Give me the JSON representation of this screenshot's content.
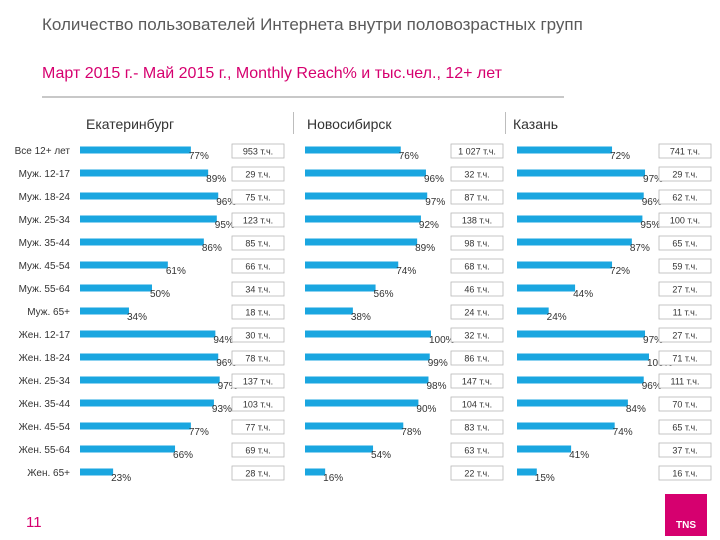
{
  "header": {
    "title": "Количество пользователей Интернета внутри половозрастных групп",
    "subtitle": "Март 2015 г.- Май 2015 г., Monthly Reach% и тыс.чел., 12+ лет"
  },
  "footer": {
    "page_number": "11",
    "logo_text": "TNS"
  },
  "colors": {
    "bar": "#1aa6e0",
    "accent": "#d6006f",
    "text": "#333333",
    "badge_border": "#b8b8b8"
  },
  "chart_data": {
    "type": "bar",
    "orientation": "horizontal",
    "title": "",
    "xlim": [
      0,
      100
    ],
    "value_unit": "%",
    "categories": [
      "Все 12+ лет",
      "Муж. 12-17",
      "Муж. 18-24",
      "Муж. 25-34",
      "Муж. 35-44",
      "Муж. 45-54",
      "Муж. 55-64",
      "Муж. 65+",
      "Жен. 12-17",
      "Жен. 18-24",
      "Жен. 25-34",
      "Жен. 35-44",
      "Жен. 45-54",
      "Жен. 55-64",
      "Жен. 65+"
    ],
    "series": [
      {
        "name": "Екатеринбург",
        "values": [
          77,
          89,
          96,
          95,
          86,
          61,
          50,
          34,
          94,
          96,
          97,
          93,
          77,
          66,
          23
        ],
        "labels": [
          "77%",
          "89%",
          "96%",
          "95%",
          "86%",
          "61%",
          "50%",
          "34%",
          "94%",
          "96%",
          "97%",
          "93%",
          "77%",
          "66%",
          "23%"
        ],
        "counts": [
          "953 т.ч.",
          "29 т.ч.",
          "75 т.ч.",
          "123 т.ч.",
          "85 т.ч.",
          "66 т.ч.",
          "34 т.ч.",
          "18 т.ч.",
          "30 т.ч.",
          "78 т.ч.",
          "137 т.ч.",
          "103 т.ч.",
          "77 т.ч.",
          "69 т.ч.",
          "28 т.ч."
        ]
      },
      {
        "name": "Новосибирск",
        "values": [
          76,
          96,
          97,
          92,
          89,
          74,
          56,
          38,
          100,
          99,
          98,
          90,
          78,
          54,
          16
        ],
        "labels": [
          "76%",
          "96%",
          "97%",
          "92%",
          "89%",
          "74%",
          "56%",
          "38%",
          "100%",
          "99%",
          "98%",
          "90%",
          "78%",
          "54%",
          "16%"
        ],
        "counts": [
          "1 027 т.ч.",
          "32 т.ч.",
          "87 т.ч.",
          "138 т.ч.",
          "98 т.ч.",
          "68 т.ч.",
          "46 т.ч.",
          "24 т.ч.",
          "32 т.ч.",
          "86 т.ч.",
          "147 т.ч.",
          "104 т.ч.",
          "83 т.ч.",
          "63 т.ч.",
          "22 т.ч."
        ]
      },
      {
        "name": "Казань",
        "values": [
          72,
          97,
          96,
          95,
          87,
          72,
          44,
          24,
          97,
          100,
          96,
          84,
          74,
          41,
          15
        ],
        "labels": [
          "72%",
          "97%",
          "96%",
          "95%",
          "87%",
          "72%",
          "44%",
          "24%",
          "97%",
          "100%",
          "96%",
          "84%",
          "74%",
          "41%",
          "15%"
        ],
        "counts": [
          "741 т.ч.",
          "29 т.ч.",
          "62 т.ч.",
          "100 т.ч.",
          "65 т.ч.",
          "59 т.ч.",
          "27 т.ч.",
          "11 т.ч.",
          "27 т.ч.",
          "71 т.ч.",
          "111 т.ч.",
          "70 т.ч.",
          "65 т.ч.",
          "37 т.ч.",
          "16 т.ч."
        ]
      }
    ],
    "grid": false,
    "legend": "none"
  }
}
